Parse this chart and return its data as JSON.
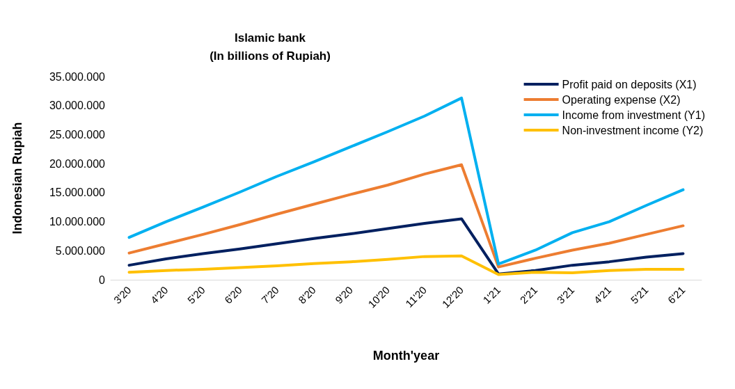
{
  "chart_data": {
    "type": "line",
    "title": "Islamic bank\n(In billions of Rupiah)",
    "xlabel": "Month'year",
    "ylabel": "Indonesian Rupiah",
    "categories": [
      "3'20",
      "4'20",
      "5'20",
      "6'20",
      "7'20",
      "8'20",
      "9'20",
      "10'20",
      "11'20",
      "12'20",
      "1'21",
      "2'21",
      "3'21",
      "4'21",
      "5'21",
      "6'21"
    ],
    "series": [
      {
        "name": "Profit paid on deposits (X1)",
        "color": "#002060",
        "values": [
          2500000,
          3600000,
          4500000,
          5300000,
          6200000,
          7100000,
          7900000,
          8800000,
          9700000,
          10500000,
          1000000,
          1600000,
          2500000,
          3100000,
          3900000,
          4500000
        ]
      },
      {
        "name": "Operating expense (X2)",
        "color": "#ed7d31",
        "values": [
          4600000,
          6200000,
          7800000,
          9500000,
          11300000,
          13000000,
          14700000,
          16300000,
          18200000,
          19800000,
          2200000,
          3700000,
          5100000,
          6300000,
          7800000,
          9300000
        ]
      },
      {
        "name": "Income from investment (Y1)",
        "color": "#00b0f0",
        "values": [
          7300000,
          10000000,
          12500000,
          15100000,
          17800000,
          20300000,
          22900000,
          25500000,
          28200000,
          31300000,
          2700000,
          5100000,
          8100000,
          10000000,
          12800000,
          15500000
        ]
      },
      {
        "name": "Non-investment income (Y2)",
        "color": "#ffc000",
        "values": [
          1300000,
          1600000,
          1800000,
          2100000,
          2400000,
          2800000,
          3100000,
          3500000,
          4000000,
          4100000,
          900000,
          1300000,
          1200000,
          1600000,
          1800000,
          1800000
        ]
      }
    ],
    "ylim": [
      0,
      35000000
    ],
    "yticks": [
      0,
      {
        "value": 5000000,
        "label": "5.000.000"
      },
      {
        "value": 10000000,
        "label": "10.000.000"
      },
      {
        "value": 15000000,
        "label": "15.000.000"
      },
      {
        "value": 20000000,
        "label": "20.000.000"
      },
      {
        "value": 25000000,
        "label": "25.000.000"
      },
      {
        "value": 30000000,
        "label": "30.000.000"
      },
      {
        "value": 35000000,
        "label": "35.000.000"
      }
    ],
    "grid": false,
    "legend": "top right",
    "marker": "none",
    "line_style": "solid"
  }
}
